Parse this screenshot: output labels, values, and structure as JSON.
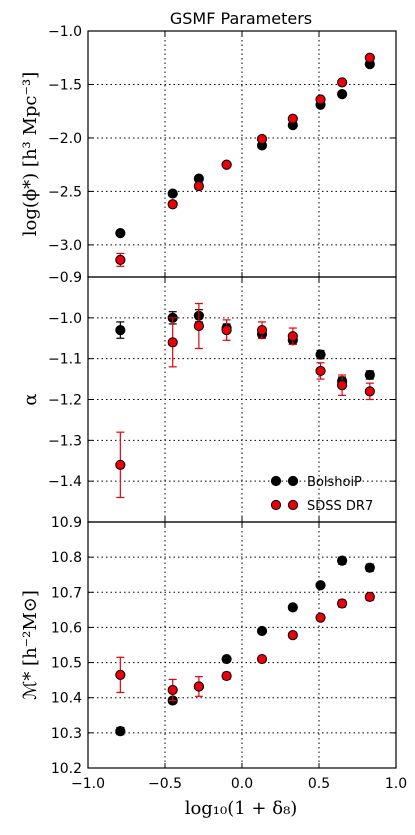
{
  "title": "GSMF Parameters",
  "xlabel": "log₁₀(1 + δ₈)",
  "xlim": [
    -1.0,
    1.0
  ],
  "xticks": [
    "−1.0",
    "−0.5",
    "0.0",
    "0.5",
    "1.0"
  ],
  "legend": {
    "placement": "lower-right",
    "entries": [
      "BolshoiP",
      "SDSS DR7"
    ]
  },
  "colors": {
    "bolshoip": "#000000",
    "sdss": "#e8000b",
    "sdss_errorbar": "#e8000b",
    "grid": "#000000"
  },
  "chart_data": [
    {
      "type": "scatter",
      "panel": "phi",
      "ylabel": "log(ϕ*)   [h³ Mpc⁻³]",
      "ylim": [
        -3.3,
        -1.0
      ],
      "yticks": [
        "−1.0",
        "−1.5",
        "−2.0",
        "−2.5",
        "−3.0"
      ],
      "grid": true,
      "series": [
        {
          "name": "BolshoiP",
          "x": [
            -0.79,
            -0.45,
            -0.28,
            -0.1,
            0.13,
            0.33,
            0.51,
            0.65,
            0.83
          ],
          "y": [
            -2.89,
            -2.52,
            -2.38,
            -2.25,
            -2.07,
            -1.88,
            -1.69,
            -1.59,
            -1.31
          ],
          "err": [
            0,
            0,
            0,
            0,
            0,
            0,
            0,
            0,
            0
          ]
        },
        {
          "name": "SDSS DR7",
          "x": [
            -0.79,
            -0.45,
            -0.28,
            -0.1,
            0.13,
            0.33,
            0.51,
            0.65,
            0.83
          ],
          "y": [
            -3.14,
            -2.62,
            -2.45,
            -2.25,
            -2.01,
            -1.82,
            -1.64,
            -1.48,
            -1.25
          ],
          "err": [
            0.06,
            0.03,
            0.03,
            0.02,
            0.02,
            0.02,
            0.02,
            0.02,
            0.02
          ]
        }
      ]
    },
    {
      "type": "scatter",
      "panel": "alpha",
      "ylabel": "α",
      "ylim": [
        -1.5,
        -0.9
      ],
      "yticks": [
        "−0.9",
        "−1.0",
        "−1.1",
        "−1.2",
        "−1.3",
        "−1.4"
      ],
      "grid": true,
      "series": [
        {
          "name": "BolshoiP",
          "x": [
            -0.79,
            -0.45,
            -0.28,
            -0.1,
            0.13,
            0.33,
            0.51,
            0.65,
            0.83
          ],
          "y": [
            -1.03,
            -1.0,
            -0.995,
            -1.025,
            -1.04,
            -1.055,
            -1.09,
            -1.155,
            -1.14
          ],
          "err": [
            0.02,
            0.015,
            0.015,
            0.01,
            0.01,
            0.01,
            0.01,
            0.01,
            0.01
          ]
        },
        {
          "name": "SDSS DR7",
          "x": [
            -0.79,
            -0.45,
            -0.28,
            -0.1,
            0.13,
            0.33,
            0.51,
            0.65,
            0.83
          ],
          "y": [
            -1.36,
            -1.06,
            -1.02,
            -1.03,
            -1.03,
            -1.045,
            -1.13,
            -1.165,
            -1.18
          ],
          "err": [
            0.08,
            0.06,
            0.055,
            0.025,
            0.02,
            0.02,
            0.02,
            0.025,
            0.02
          ]
        }
      ]
    },
    {
      "type": "scatter",
      "panel": "mstar",
      "ylabel": "ℳ* [h⁻²M⊙]",
      "ylim": [
        10.2,
        10.9
      ],
      "yticks": [
        "10.9",
        "10.8",
        "10.7",
        "10.6",
        "10.5",
        "10.4",
        "10.3",
        "10.2"
      ],
      "grid": true,
      "series": [
        {
          "name": "BolshoiP",
          "x": [
            -0.79,
            -0.45,
            -0.28,
            -0.1,
            0.13,
            0.33,
            0.51,
            0.65,
            0.83
          ],
          "y": [
            10.305,
            10.392,
            10.432,
            10.51,
            10.59,
            10.657,
            10.72,
            10.79,
            10.77
          ],
          "err": [
            0.01,
            0.008,
            0.008,
            0.006,
            0.006,
            0.006,
            0.006,
            0.01,
            0.01
          ]
        },
        {
          "name": "SDSS DR7",
          "x": [
            -0.79,
            -0.45,
            -0.28,
            -0.1,
            0.13,
            0.33,
            0.51,
            0.65,
            0.83
          ],
          "y": [
            10.465,
            10.422,
            10.432,
            10.462,
            10.51,
            10.578,
            10.628,
            10.668,
            10.687
          ],
          "err": [
            0.05,
            0.03,
            0.028,
            0.01,
            0.008,
            0.008,
            0.008,
            0.01,
            0.01
          ]
        }
      ]
    }
  ]
}
